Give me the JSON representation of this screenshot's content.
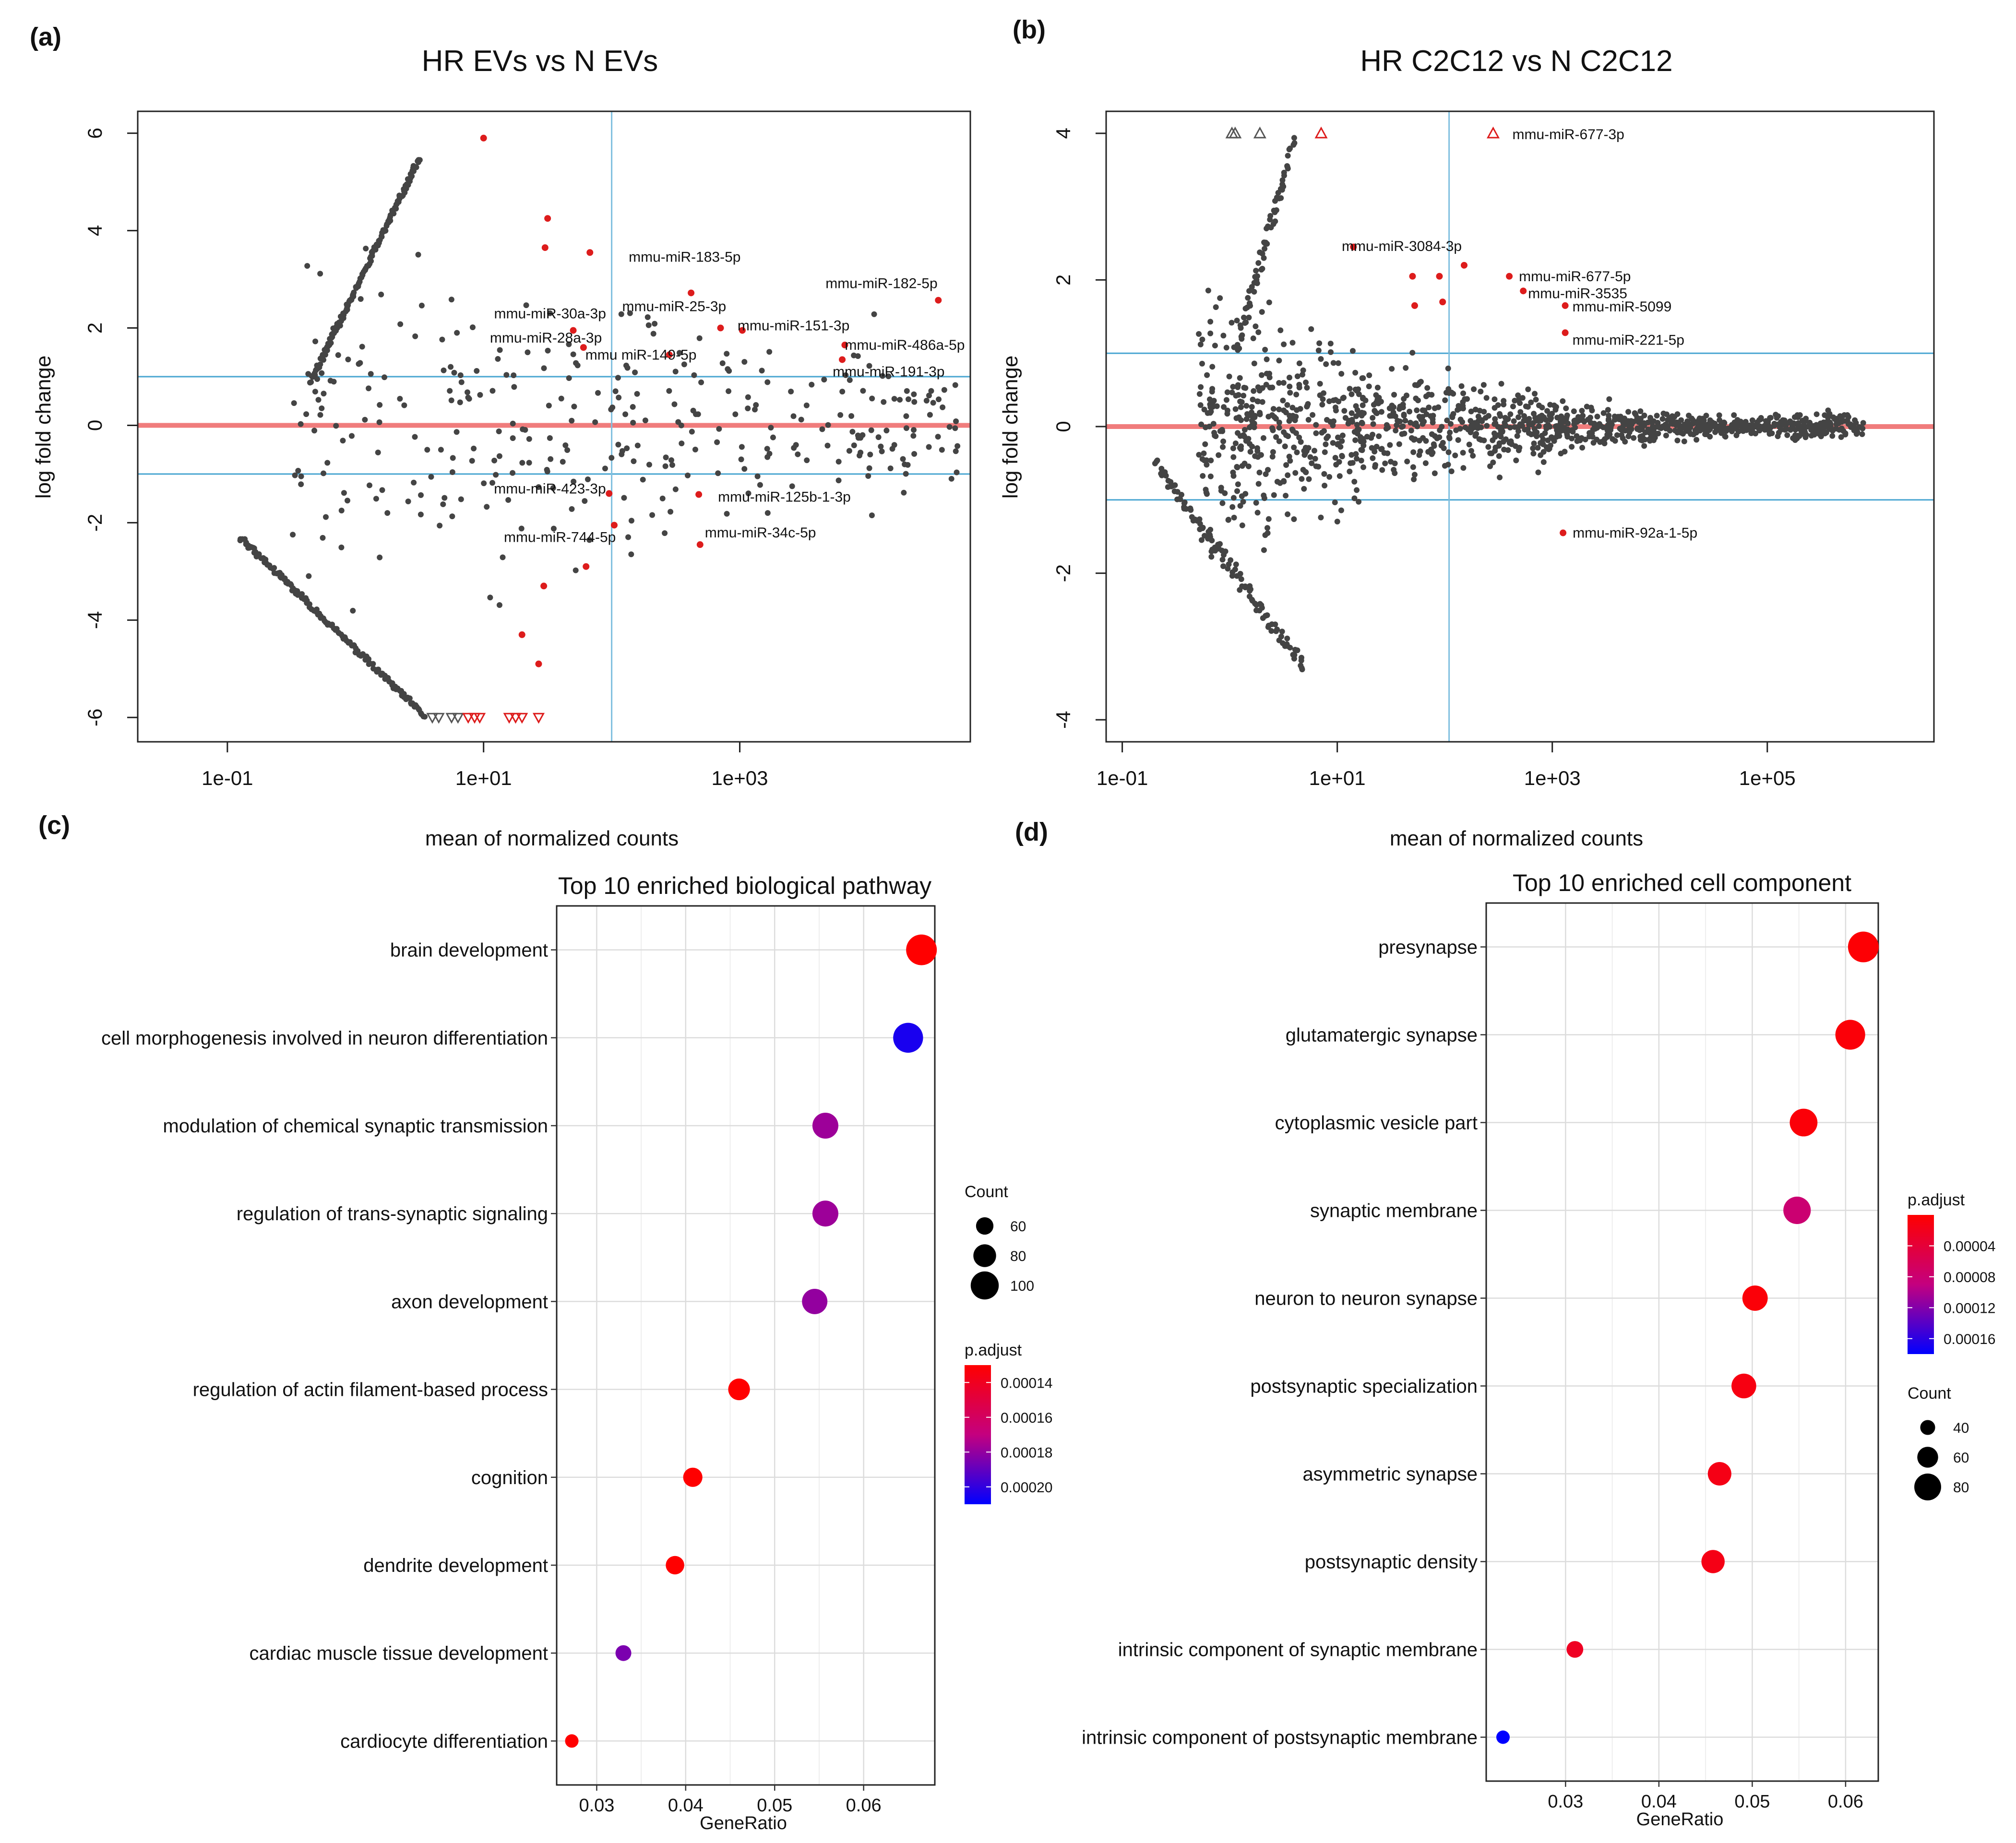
{
  "panel_labels": [
    "(a)",
    "(b)",
    "(c)",
    "(d)"
  ],
  "chart_data": [
    {
      "id": "a",
      "type": "scatter",
      "title": "HR EVs vs N EVs",
      "xlabel": "mean of normalized counts",
      "ylabel": "log fold change",
      "xscale": "log10",
      "xlim_log10": [
        -1.7,
        4.8
      ],
      "ylim": [
        -6.5,
        6.45
      ],
      "x_ticks": [
        {
          "log10": -1,
          "label": "1e-01"
        },
        {
          "log10": 1,
          "label": "1e+01"
        },
        {
          "log10": 3,
          "label": "1e+03"
        }
      ],
      "y_ticks": [
        {
          "value": -6,
          "label": "-6"
        },
        {
          "value": -4,
          "label": "-4"
        },
        {
          "value": -2,
          "label": "-2"
        },
        {
          "value": 0,
          "label": "0"
        },
        {
          "value": 2,
          "label": "2"
        },
        {
          "value": 4,
          "label": "4"
        },
        {
          "value": 6,
          "label": "6"
        }
      ],
      "fold_thresholds": [
        1,
        -1
      ],
      "vertical_line_log10": 2,
      "colors": {
        "background_points": "#444444",
        "significant": "#dd1c1c",
        "zero_line": "#f07c7c",
        "threshold_lines": "#4aa6d2"
      },
      "significant_points": [
        {
          "label": "mmu-miR-183-5p",
          "log10_mean": 2.62,
          "lfc": 2.72
        },
        {
          "label": "mmu-miR-182-5p",
          "log10_mean": 4.55,
          "lfc": 2.57
        },
        {
          "label": "mmu-miR-30a-3p",
          "log10_mean": 1.7,
          "lfc": 1.95
        },
        {
          "label": "mmu-miR-25-3p",
          "log10_mean": 2.85,
          "lfc": 2.0
        },
        {
          "label": "mmu-miR-151-3p",
          "log10_mean": 3.02,
          "lfc": 1.95
        },
        {
          "label": "mmu-miR-28a-3p",
          "log10_mean": 1.78,
          "lfc": 1.6
        },
        {
          "label": "mmu miR-149-5p",
          "log10_mean": 2.45,
          "lfc": 1.45
        },
        {
          "label": "mmu-miR-486a-5p",
          "log10_mean": 3.82,
          "lfc": 1.65
        },
        {
          "label": "mmu-miR-191-3p",
          "log10_mean": 3.8,
          "lfc": 1.35
        },
        {
          "label": "mmu-miR-423-3p",
          "log10_mean": 1.98,
          "lfc": -1.4
        },
        {
          "label": "mmu-miR-125b-1-3p",
          "log10_mean": 2.68,
          "lfc": -1.42
        },
        {
          "label": "mmu-miR-744-5p",
          "log10_mean": 2.02,
          "lfc": -2.05
        },
        {
          "label": "mmu-miR-34c-5p",
          "log10_mean": 2.69,
          "lfc": -2.45
        }
      ],
      "other_significant_points": [
        {
          "log10_mean": 1.0,
          "lfc": 5.9
        },
        {
          "log10_mean": 1.5,
          "lfc": 4.25
        },
        {
          "log10_mean": 1.48,
          "lfc": 3.65
        },
        {
          "log10_mean": 1.83,
          "lfc": 3.55
        },
        {
          "log10_mean": 1.8,
          "lfc": -2.9
        },
        {
          "log10_mean": 1.47,
          "lfc": -3.3
        },
        {
          "log10_mean": 1.3,
          "lfc": -4.3
        },
        {
          "log10_mean": 1.43,
          "lfc": -4.9
        }
      ],
      "clipped_low_points_log10": [
        {
          "log10_mean": 0.6,
          "significant": false
        },
        {
          "log10_mean": 0.65,
          "significant": false
        },
        {
          "log10_mean": 0.75,
          "significant": false
        },
        {
          "log10_mean": 0.8,
          "significant": false
        },
        {
          "log10_mean": 0.88,
          "significant": true
        },
        {
          "log10_mean": 0.93,
          "significant": true
        },
        {
          "log10_mean": 0.97,
          "significant": true
        },
        {
          "log10_mean": 1.2,
          "significant": true
        },
        {
          "log10_mean": 1.25,
          "significant": true
        },
        {
          "log10_mean": 1.3,
          "significant": true
        },
        {
          "log10_mean": 1.43,
          "significant": true
        }
      ]
    },
    {
      "id": "b",
      "type": "scatter",
      "title": "HR C2C12 vs N C2C12",
      "xlabel": "mean of normalized counts",
      "ylabel": "log fold change",
      "xscale": "log10",
      "xlim_log10": [
        -1.15,
        6.55
      ],
      "ylim": [
        -4.3,
        4.3
      ],
      "x_ticks": [
        {
          "log10": -1,
          "label": "1e-01"
        },
        {
          "log10": 1,
          "label": "1e+01"
        },
        {
          "log10": 3,
          "label": "1e+03"
        },
        {
          "log10": 5,
          "label": "1e+05"
        }
      ],
      "y_ticks": [
        {
          "value": -4,
          "label": "-4"
        },
        {
          "value": -2,
          "label": "-2"
        },
        {
          "value": 0,
          "label": "0"
        },
        {
          "value": 2,
          "label": "2"
        },
        {
          "value": 4,
          "label": "4"
        }
      ],
      "fold_thresholds": [
        1,
        -1
      ],
      "vertical_line_log10": 2.04,
      "colors": {
        "background_points": "#444444",
        "significant": "#dd1c1c",
        "zero_line": "#f07c7c",
        "threshold_lines": "#4aa6d2"
      },
      "significant_points": [
        {
          "label": "mmu-miR-677-3p",
          "log10_mean": 2.45,
          "lfc": 4.0,
          "clipped": true
        },
        {
          "label": "mmu-miR-3084-3p",
          "log10_mean": 2.18,
          "lfc": 2.2
        },
        {
          "label": "mmu-miR-677-5p",
          "log10_mean": 2.6,
          "lfc": 2.05
        },
        {
          "label": "mmu-miR-3535",
          "log10_mean": 2.73,
          "lfc": 1.85
        },
        {
          "label": "mmu-miR-5099",
          "log10_mean": 3.12,
          "lfc": 1.65
        },
        {
          "label": "mmu-miR-221-5p",
          "log10_mean": 3.12,
          "lfc": 1.28
        },
        {
          "label": "mmu-miR-92a-1-5p",
          "log10_mean": 3.1,
          "lfc": -1.45
        }
      ],
      "other_significant_points": [
        {
          "log10_mean": 0.85,
          "lfc": 4.0,
          "clipped": true
        },
        {
          "log10_mean": 1.15,
          "lfc": 2.45
        },
        {
          "log10_mean": 1.7,
          "lfc": 2.05
        },
        {
          "log10_mean": 1.95,
          "lfc": 2.05
        },
        {
          "log10_mean": 1.72,
          "lfc": 1.65
        },
        {
          "log10_mean": 1.98,
          "lfc": 1.7
        }
      ],
      "clipped_high_points_log10": [
        0.02,
        0.05,
        0.28
      ]
    },
    {
      "id": "c",
      "type": "dot",
      "title": "Top 10 enriched biological pathway",
      "xlabel": "GeneRatio",
      "xlim": [
        0.0255,
        0.068
      ],
      "x_ticks": [
        0.03,
        0.04,
        0.05,
        0.06
      ],
      "x_tick_labels": [
        "0.03",
        "0.04",
        "0.05",
        "0.06"
      ],
      "categories": [
        "brain development",
        "cell morphogenesis involved in neuron differentiation",
        "modulation of chemical synaptic transmission",
        "regulation of trans-synaptic signaling",
        "axon development",
        "regulation of actin filament-based process",
        "cognition",
        "dendrite development",
        "cardiac muscle tissue development",
        "cardiocyte differentiation"
      ],
      "gene_ratio": [
        0.0665,
        0.065,
        0.0557,
        0.0557,
        0.0545,
        0.046,
        0.0408,
        0.0388,
        0.033,
        0.0272
      ],
      "count": [
        110,
        107,
        92,
        92,
        90,
        76,
        67,
        64,
        54,
        45
      ],
      "p_adjust": [
        0.00013,
        0.000205,
        0.000178,
        0.000178,
        0.00018,
        0.00013,
        0.00013,
        0.00013,
        0.000185,
        0.00013
      ],
      "legend_count": {
        "title": "Count",
        "values": [
          60,
          80,
          100
        ],
        "labels": [
          "60",
          "80",
          "100"
        ]
      },
      "legend_padjust": {
        "title": "p.adjust",
        "min": 0.00013,
        "max": 0.00021,
        "ticks": [
          0.00014,
          0.00016,
          0.00018,
          0.0002
        ],
        "labels": [
          "0.00014",
          "0.00016",
          "0.00018",
          "0.00020"
        ]
      },
      "colors": {
        "low": "#ff0000",
        "high": "#0000ff"
      }
    },
    {
      "id": "d",
      "type": "dot",
      "title": "Top 10 enriched cell component",
      "xlabel": "GeneRatio",
      "xlim": [
        0.0215,
        0.0635
      ],
      "x_ticks": [
        0.03,
        0.04,
        0.05,
        0.06
      ],
      "x_tick_labels": [
        "0.03",
        "0.04",
        "0.05",
        "0.06"
      ],
      "categories": [
        "presynapse",
        "glutamatergic synapse",
        "cytoplasmic vesicle part",
        "synaptic membrane",
        "neuron to neuron synapse",
        "postsynaptic specialization",
        "asymmetric synapse",
        "postsynaptic density",
        "intrinsic component of synaptic membrane",
        "intrinsic component of postsynaptic membrane"
      ],
      "gene_ratio": [
        0.0619,
        0.0605,
        0.0555,
        0.0548,
        0.0503,
        0.0491,
        0.0465,
        0.0458,
        0.031,
        0.0233
      ],
      "count": [
        93,
        90,
        83,
        82,
        75,
        73,
        69,
        68,
        46,
        35
      ],
      "p_adjust": [
        3e-06,
        6e-06,
        6e-06,
        8e-05,
        6e-06,
        1.2e-05,
        1.5e-05,
        1.5e-05,
        2.5e-05,
        0.00018
      ],
      "legend_count": {
        "title": "Count",
        "values": [
          40,
          60,
          80
        ],
        "labels": [
          "40",
          "60",
          "80"
        ]
      },
      "legend_padjust": {
        "title": "p.adjust",
        "min": 0.0,
        "max": 0.00018,
        "ticks": [
          4e-05,
          8e-05,
          0.00012,
          0.00016
        ],
        "labels": [
          "0.00004",
          "0.00008",
          "0.00012",
          "0.00016"
        ]
      },
      "colors": {
        "low": "#ff0000",
        "high": "#0000ff"
      }
    }
  ]
}
